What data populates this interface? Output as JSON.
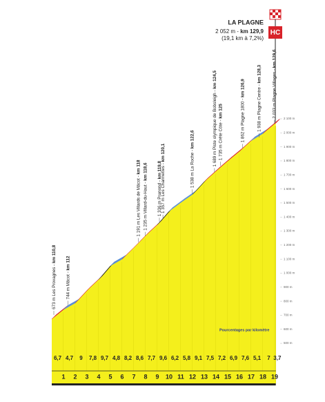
{
  "chart_data": {
    "type": "climb-profile",
    "title": "LA PLAGNE",
    "summit_elevation": {
      "value": 2052,
      "label": "2 052 m"
    },
    "summit_separator": " - ",
    "summit_km": {
      "value": 129.9,
      "label": "km 129,9"
    },
    "subtitle": "(19,1 km à 7,2%)",
    "category": "HC",
    "note": "Pourcentages par kilomètre",
    "start_km": 110.8,
    "xlim": [
      110.8,
      129.9
    ],
    "gradients": [
      6.7,
      4.7,
      9,
      7.8,
      9.7,
      4.8,
      8.2,
      8.6,
      7.7,
      9.6,
      6.2,
      5.8,
      9.1,
      7.5,
      7.2,
      6.9,
      7.6,
      5.1,
      7,
      3.7
    ],
    "gradient_labels": [
      "6,7",
      "4,7",
      "9",
      "7,8",
      "9,7",
      "4,8",
      "8,2",
      "8,6",
      "7,7",
      "9,6",
      "6,2",
      "5,8",
      "9,1",
      "7,5",
      "7,2",
      "6,9",
      "7,6",
      "5,1",
      "7",
      "3,7"
    ],
    "segment_colors": [
      "#d8232a",
      "#5b8fd6",
      "#d8232a",
      "#d8232a",
      "#1e1e1e",
      "#5b8fd6",
      "#d8232a",
      "#d8232a",
      "#d8232a",
      "#1e1e1e",
      "#5b8fd6",
      "#5b8fd6",
      "#1e1e1e",
      "#d8232a",
      "#d8232a",
      "#d8232a",
      "#d8232a",
      "#5b8fd6",
      "#d8232a",
      "#d8232a"
    ],
    "fill_color": "#f4ef1c",
    "km_markers": [
      1,
      2,
      3,
      4,
      5,
      6,
      7,
      8,
      9,
      10,
      11,
      12,
      13,
      14,
      15,
      16,
      17,
      18,
      19
    ],
    "ylim": [
      200,
      2100
    ],
    "yticks": [
      {
        "value": 500,
        "label": "500 m"
      },
      {
        "value": 600,
        "label": "600 m"
      },
      {
        "value": 700,
        "label": "700 m"
      },
      {
        "value": 800,
        "label": "800 m"
      },
      {
        "value": 900,
        "label": "900 m"
      },
      {
        "value": 1000,
        "label": "1 000 m"
      },
      {
        "value": 1100,
        "label": "1 100 m"
      },
      {
        "value": 1200,
        "label": "1 200 m"
      },
      {
        "value": 1300,
        "label": "1 300 m"
      },
      {
        "value": 1400,
        "label": "1 400 m"
      },
      {
        "value": 1500,
        "label": "1 500 m"
      },
      {
        "value": 1600,
        "label": "1 600 m"
      },
      {
        "value": 1700,
        "label": "1 700 m"
      },
      {
        "value": 1800,
        "label": "1 800 m"
      },
      {
        "value": 1900,
        "label": "1 900 m"
      },
      {
        "value": 2000,
        "label": "2 000 m"
      },
      {
        "value": 2100,
        "label": "2 100 m"
      }
    ],
    "annotations": [
      {
        "elevation": {
          "value": 673,
          "label": "673 m"
        },
        "name": " Les Provagnes - ",
        "km": {
          "value": 110.8,
          "label": "km 110,8"
        }
      },
      {
        "elevation": {
          "value": 744,
          "label": "744 m"
        },
        "name": " Mâcot - ",
        "km": {
          "value": 112,
          "label": "km 112"
        }
      },
      {
        "elevation": {
          "value": 1191,
          "label": "1 191 m"
        },
        "name": " Les Villards de Mâcot - ",
        "km": {
          "value": 118,
          "label": "km 118"
        }
      },
      {
        "elevation": {
          "value": 1235,
          "label": "1 235 m"
        },
        "name": " Villard-du-Haut - ",
        "km": {
          "value": 118.6,
          "label": "km 118,6"
        }
      },
      {
        "elevation": {
          "value": 1336,
          "label": "1 336 m"
        },
        "name": " Pranond - ",
        "km": {
          "value": 119.8,
          "label": "km 119,8"
        }
      },
      {
        "elevation": {
          "value": 1357,
          "label": "1 357 m"
        },
        "name": " Les Charmettes - ",
        "km": {
          "value": 120.1,
          "label": "km 120,1"
        }
      },
      {
        "elevation": {
          "value": 1538,
          "label": "1 538 m"
        },
        "name": " La Roche - ",
        "km": {
          "value": 122.6,
          "label": "km 122,6"
        }
      },
      {
        "elevation": {
          "value": 1689,
          "label": "1 689 m"
        },
        "name": " Piste olympique de Bobsleigh - ",
        "km": {
          "value": 124.5,
          "label": "km 124,5"
        }
      },
      {
        "elevation": {
          "value": 1735,
          "label": "1 735 m"
        },
        "name": " Crête Côte - ",
        "km": {
          "value": 125,
          "label": "km 125"
        }
      },
      {
        "elevation": {
          "value": 1862,
          "label": "1 862 m"
        },
        "name": " Plagne 1800 - ",
        "km": {
          "value": 126.9,
          "label": "km 126,9"
        }
      },
      {
        "elevation": {
          "value": 1938,
          "label": "1 938 m"
        },
        "name": " Plagne Centre - ",
        "km": {
          "value": 128.3,
          "label": "km 128,3"
        }
      },
      {
        "elevation": {
          "value": 2033,
          "label": "2 033 m"
        },
        "name": " Plagne Villages - ",
        "km": {
          "value": 129.6,
          "label": "km 129,6"
        }
      }
    ]
  }
}
